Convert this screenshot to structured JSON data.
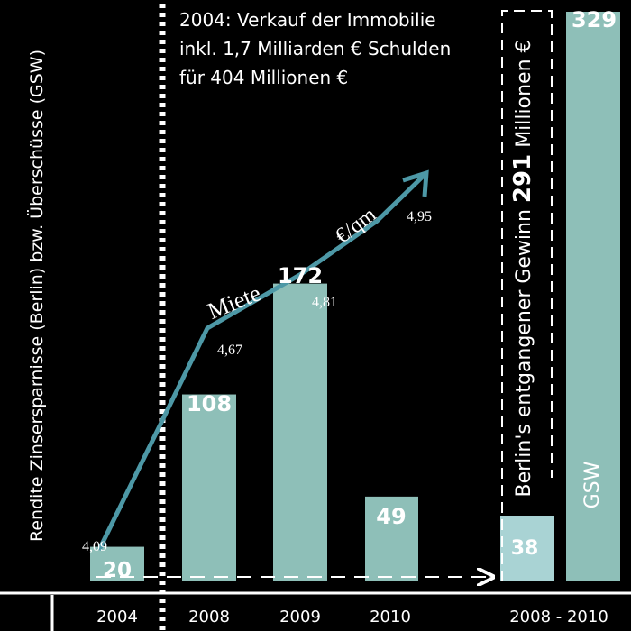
{
  "chart_data": {
    "type": "bar",
    "ylabel": "Rendite  Zinsersparnisse (Berlin) bzw. Überschüsse (GSW)",
    "annotation_lines": [
      "2004: Verkauf der Immobilie",
      "inkl. 1,7 Milliarden € Schulden",
      "für 404 Millionen €"
    ],
    "categories": [
      "2004",
      "2008",
      "2009",
      "2010",
      "2008 - 2010",
      "2008 - 2010"
    ],
    "x_tick_labels": [
      "2004",
      "2008",
      "2009",
      "2010",
      "2008 - 2010"
    ],
    "bars": [
      {
        "category": "2004",
        "value": 20,
        "label": "20",
        "color": "#8ebfb8"
      },
      {
        "category": "2008",
        "value": 108,
        "label": "108",
        "color": "#8ebfb8"
      },
      {
        "category": "2009",
        "value": 172,
        "label": "172",
        "color": "#8ebfb8"
      },
      {
        "category": "2010",
        "value": 49,
        "label": "49",
        "color": "#8ebfb8"
      },
      {
        "category": "2008 - 2010",
        "value": 38,
        "label": "38",
        "color": "#a9d3d4"
      },
      {
        "category": "2008 - 2010",
        "value": 329,
        "label": "329",
        "color": "#8ebfb8"
      }
    ],
    "rent_series": {
      "unit_label": "€/qm",
      "name_label": "Miete",
      "color": "#4d98a6",
      "points": [
        {
          "x": "2004",
          "value": 4.09,
          "label": "4,09"
        },
        {
          "x": "2008",
          "value": 4.67,
          "label": "4,67"
        },
        {
          "x": "2009",
          "value": 4.81,
          "label": "4,81"
        },
        {
          "x": "2010",
          "value": 4.95,
          "label": "4,95"
        }
      ]
    },
    "lost_profit": {
      "prefix": "Berlin's entgangener Gewinn",
      "value": "291",
      "suffix": "Millionen €"
    },
    "gsw_label": "GSW"
  }
}
